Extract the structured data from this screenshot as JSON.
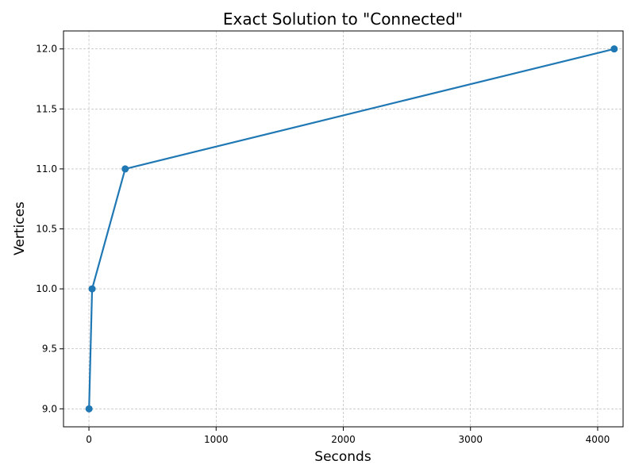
{
  "chart_data": {
    "type": "line",
    "title": "Exact Solution to \"Connected\"",
    "xlabel": "Seconds",
    "ylabel": "Vertices",
    "xlim": [
      -200,
      4200
    ],
    "ylim": [
      8.85,
      12.15
    ],
    "xticks": [
      0,
      1000,
      2000,
      3000,
      4000
    ],
    "yticks": [
      9.0,
      9.5,
      10.0,
      10.5,
      11.0,
      11.5,
      12.0
    ],
    "xtick_labels": [
      "0",
      "1000",
      "2000",
      "3000",
      "4000"
    ],
    "ytick_labels": [
      "9.0",
      "9.5",
      "10.0",
      "10.5",
      "11.0",
      "11.5",
      "12.0"
    ],
    "grid": true,
    "series": [
      {
        "x": [
          1,
          25,
          285,
          4130
        ],
        "y": [
          9,
          10,
          11,
          12
        ],
        "color": "#1f77b4",
        "marker": "circle"
      }
    ]
  }
}
